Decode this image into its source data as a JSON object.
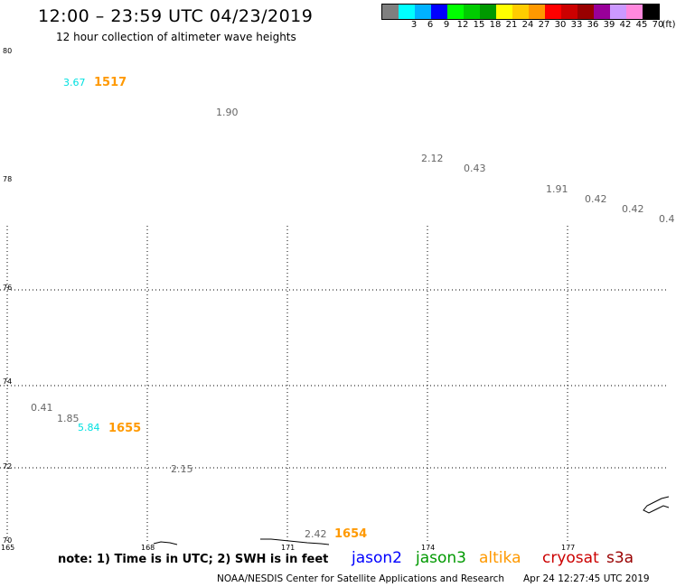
{
  "header": {
    "title": "12:00 – 23:59 UTC 04/23/2019",
    "subtitle": "12 hour collection of altimeter wave heights"
  },
  "legend": {
    "unit": "(ft)",
    "swatches": [
      {
        "label": "",
        "color": "#7f7f7f"
      },
      {
        "label": "3",
        "color": "#00ffff"
      },
      {
        "label": "6",
        "color": "#00b2ff"
      },
      {
        "label": "9",
        "color": "#0000ff"
      },
      {
        "label": "12",
        "color": "#00ff00"
      },
      {
        "label": "15",
        "color": "#00cc00"
      },
      {
        "label": "18",
        "color": "#009900"
      },
      {
        "label": "21",
        "color": "#ffff00"
      },
      {
        "label": "24",
        "color": "#ffcc00"
      },
      {
        "label": "27",
        "color": "#ff9900"
      },
      {
        "label": "30",
        "color": "#ff0000"
      },
      {
        "label": "33",
        "color": "#cc0000"
      },
      {
        "label": "36",
        "color": "#990000"
      },
      {
        "label": "39",
        "color": "#990099"
      },
      {
        "label": "42",
        "color": "#cc99ff"
      },
      {
        "label": "45",
        "color": "#ff88dd"
      },
      {
        "label": "70",
        "color": "#000000"
      }
    ]
  },
  "map": {
    "lat_labels": [
      "80",
      "78",
      "76",
      "74",
      "72",
      "70"
    ],
    "lon_labels": [
      "165",
      "168",
      "171",
      "174",
      "177"
    ],
    "wave_heights": [
      {
        "value": "3.67",
        "color": "#00e0e0"
      },
      {
        "value": "1.90",
        "color": "#666666"
      },
      {
        "value": "2.12",
        "color": "#666666"
      },
      {
        "value": "0.43",
        "color": "#666666"
      },
      {
        "value": "1.91",
        "color": "#666666"
      },
      {
        "value": "0.42",
        "color": "#666666"
      },
      {
        "value": "0.42",
        "color": "#666666"
      },
      {
        "value": "0.4",
        "color": "#666666"
      },
      {
        "value": "0.41",
        "color": "#666666"
      },
      {
        "value": "1.85",
        "color": "#666666"
      },
      {
        "value": "5.84",
        "color": "#00e0e0"
      },
      {
        "value": "2.15",
        "color": "#666666"
      },
      {
        "value": "2.42",
        "color": "#666666"
      }
    ],
    "pass_times": [
      {
        "value": "1517",
        "color": "#ff9900"
      },
      {
        "value": "1655",
        "color": "#ff9900"
      },
      {
        "value": "1654",
        "color": "#ff9900"
      }
    ]
  },
  "footer": {
    "note": "note: 1) Time is in UTC; 2) SWH is in feet",
    "satellites": [
      {
        "name": "jason2",
        "color": "#0000ff"
      },
      {
        "name": "jason3",
        "color": "#009900"
      },
      {
        "name": "altika",
        "color": "#ff9900"
      },
      {
        "name": "cryosat",
        "color": "#cc0000"
      },
      {
        "name": "s3a",
        "color": "#990000"
      }
    ],
    "credit": "NOAA/NESDIS Center for Satellite Applications and Research",
    "timestamp": "Apr 24 12:27:45 UTC 2019"
  }
}
